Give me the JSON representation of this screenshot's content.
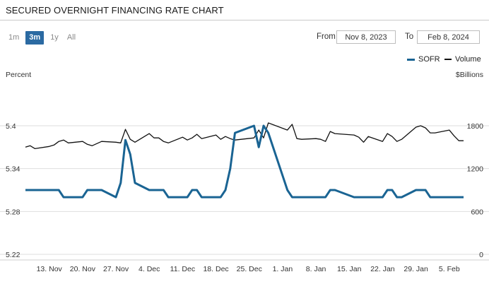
{
  "title": "SECURED OVERNIGHT FINANCING RATE CHART",
  "ranges": [
    {
      "label": "1m",
      "active": false
    },
    {
      "label": "3m",
      "active": true
    },
    {
      "label": "1y",
      "active": false
    },
    {
      "label": "All",
      "active": false
    }
  ],
  "date_range": {
    "from_label": "From",
    "from_value": "Nov 8, 2023",
    "to_label": "To",
    "to_value": "Feb 8, 2024"
  },
  "colors": {
    "sofr": "#1a6493",
    "volume": "#111111"
  },
  "chart_data": {
    "type": "line",
    "legend_placement": "top-right",
    "left_axis_title": "Percent",
    "right_axis_title": "$Billions",
    "left_ylim": [
      5.22,
      5.4
    ],
    "left_ticks": [
      "5.22",
      "5.28",
      "5.34",
      "5.4"
    ],
    "right_ylim": [
      0,
      1800
    ],
    "right_ticks": [
      "0",
      "600",
      "1200",
      "1800"
    ],
    "grid": "horizontal",
    "x_tick_labels": [
      "13. Nov",
      "20. Nov",
      "27. Nov",
      "4. Dec",
      "11. Dec",
      "18. Dec",
      "25. Dec",
      "1. Jan",
      "8. Jan",
      "15. Jan",
      "22. Jan",
      "29. Jan",
      "5. Feb"
    ],
    "x": [
      "2023-11-08",
      "2023-11-09",
      "2023-11-10",
      "2023-11-13",
      "2023-11-14",
      "2023-11-15",
      "2023-11-16",
      "2023-11-17",
      "2023-11-20",
      "2023-11-21",
      "2023-11-22",
      "2023-11-24",
      "2023-11-27",
      "2023-11-28",
      "2023-11-29",
      "2023-11-30",
      "2023-12-01",
      "2023-12-04",
      "2023-12-05",
      "2023-12-06",
      "2023-12-07",
      "2023-12-08",
      "2023-12-11",
      "2023-12-12",
      "2023-12-13",
      "2023-12-14",
      "2023-12-15",
      "2023-12-18",
      "2023-12-19",
      "2023-12-20",
      "2023-12-21",
      "2023-12-22",
      "2023-12-26",
      "2023-12-27",
      "2023-12-28",
      "2023-12-29",
      "2024-01-02",
      "2024-01-03",
      "2024-01-04",
      "2024-01-05",
      "2024-01-08",
      "2024-01-09",
      "2024-01-10",
      "2024-01-11",
      "2024-01-12",
      "2024-01-16",
      "2024-01-17",
      "2024-01-18",
      "2024-01-19",
      "2024-01-22",
      "2024-01-23",
      "2024-01-24",
      "2024-01-25",
      "2024-01-26",
      "2024-01-29",
      "2024-01-30",
      "2024-01-31",
      "2024-02-01",
      "2024-02-02",
      "2024-02-05",
      "2024-02-06",
      "2024-02-07",
      "2024-02-08"
    ],
    "series": [
      {
        "name": "SOFR",
        "axis": "left",
        "values": [
          5.31,
          5.31,
          5.31,
          5.31,
          5.31,
          5.31,
          5.3,
          5.3,
          5.3,
          5.31,
          5.31,
          5.31,
          5.3,
          5.32,
          5.38,
          5.36,
          5.32,
          5.31,
          5.31,
          5.31,
          5.31,
          5.3,
          5.3,
          5.3,
          5.31,
          5.31,
          5.3,
          5.3,
          5.3,
          5.31,
          5.34,
          5.39,
          5.4,
          5.37,
          5.4,
          5.39,
          5.31,
          5.3,
          5.3,
          5.3,
          5.3,
          5.3,
          5.3,
          5.31,
          5.31,
          5.3,
          5.3,
          5.3,
          5.3,
          5.3,
          5.31,
          5.31,
          5.3,
          5.3,
          5.31,
          5.31,
          5.31,
          5.3,
          5.3,
          5.3,
          5.3,
          5.3,
          5.3
        ]
      },
      {
        "name": "Volume",
        "axis": "right",
        "values": [
          1500,
          1520,
          1480,
          1510,
          1530,
          1580,
          1600,
          1560,
          1580,
          1540,
          1520,
          1580,
          1570,
          1560,
          1750,
          1610,
          1570,
          1690,
          1630,
          1630,
          1580,
          1560,
          1640,
          1600,
          1630,
          1680,
          1620,
          1670,
          1610,
          1650,
          1620,
          1600,
          1630,
          1740,
          1630,
          1840,
          1740,
          1820,
          1620,
          1610,
          1620,
          1610,
          1580,
          1720,
          1690,
          1670,
          1640,
          1570,
          1650,
          1580,
          1690,
          1650,
          1580,
          1610,
          1780,
          1800,
          1770,
          1700,
          1700,
          1740,
          1660,
          1590,
          1590
        ]
      }
    ]
  }
}
